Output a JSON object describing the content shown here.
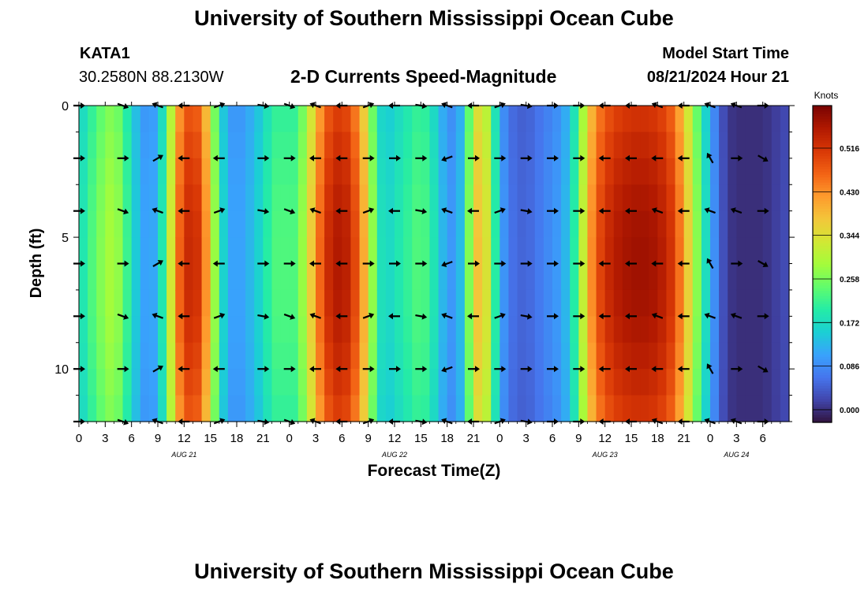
{
  "header": {
    "title": "University of Southern Mississippi Ocean Cube",
    "station": "KATA1",
    "coords": "30.2580N  88.2130W",
    "subtitle": "2-D Currents Speed-Magnitude",
    "model_label": "Model Start Time",
    "model_time": "08/21/2024 Hour 21"
  },
  "footer": {
    "title": "University of Southern Mississippi Ocean Cube"
  },
  "colors": {
    "ramp": [
      "#30123b",
      "#4145ab",
      "#4675ed",
      "#39a2fc",
      "#1bcfd4",
      "#24eca6",
      "#61fc6c",
      "#a4fc3b",
      "#d1e834",
      "#f3c63a",
      "#fe9b2d",
      "#f36315",
      "#d93806",
      "#b11901",
      "#7a0402"
    ]
  },
  "chart_data": {
    "type": "heatmap",
    "title": "2-D Currents Speed-Magnitude",
    "xlabel": "Forecast Time(Z)",
    "ylabel": "Depth (ft)",
    "x_range_hours": [
      0,
      81
    ],
    "x_tick_step_hours": 3,
    "x_tick_labels": [
      "0",
      "3",
      "6",
      "9",
      "12",
      "15",
      "18",
      "21",
      "0",
      "3",
      "6",
      "9",
      "12",
      "15",
      "18",
      "21",
      "0",
      "3",
      "6",
      "9",
      "12",
      "15",
      "18",
      "21",
      "0",
      "3",
      "6"
    ],
    "date_labels": [
      {
        "hour": 12,
        "label": "AUG 21"
      },
      {
        "hour": 36,
        "label": "AUG 22"
      },
      {
        "hour": 60,
        "label": "AUG 23"
      },
      {
        "hour": 75,
        "label": "AUG 24"
      }
    ],
    "y_range_ft": [
      0,
      12
    ],
    "y_ticks": [
      0,
      5,
      10
    ],
    "colorbar": {
      "label": "Knots",
      "ticks": [
        0.0,
        0.086,
        0.172,
        0.258,
        0.344,
        0.43,
        0.516
      ],
      "tick_labels": [
        "0.000",
        "0.086",
        "0.172",
        "0.258",
        "0.344",
        "0.430",
        "0.516"
      ],
      "range": [
        -0.025,
        0.6
      ]
    },
    "speed_profile_knots": [
      [
        0,
        0.17
      ],
      [
        1,
        0.21
      ],
      [
        2,
        0.25
      ],
      [
        3,
        0.28
      ],
      [
        4,
        0.3
      ],
      [
        5,
        0.25
      ],
      [
        6,
        0.18
      ],
      [
        7,
        0.12
      ],
      [
        8,
        0.1
      ],
      [
        9,
        0.13
      ],
      [
        10,
        0.25
      ],
      [
        11,
        0.42
      ],
      [
        12,
        0.52
      ],
      [
        13,
        0.54
      ],
      [
        14,
        0.5
      ],
      [
        15,
        0.36
      ],
      [
        16,
        0.2
      ],
      [
        17,
        0.12
      ],
      [
        18,
        0.1
      ],
      [
        19,
        0.12
      ],
      [
        20,
        0.14
      ],
      [
        21,
        0.18
      ],
      [
        22,
        0.22
      ],
      [
        23,
        0.24
      ],
      [
        24,
        0.22
      ],
      [
        25,
        0.24
      ],
      [
        26,
        0.32
      ],
      [
        27,
        0.42
      ],
      [
        28,
        0.51
      ],
      [
        29,
        0.55
      ],
      [
        30,
        0.56
      ],
      [
        31,
        0.53
      ],
      [
        32,
        0.46
      ],
      [
        33,
        0.35
      ],
      [
        34,
        0.2
      ],
      [
        35,
        0.16
      ],
      [
        36,
        0.18
      ],
      [
        37,
        0.2
      ],
      [
        38,
        0.22
      ],
      [
        39,
        0.24
      ],
      [
        40,
        0.21
      ],
      [
        41,
        0.16
      ],
      [
        42,
        0.1
      ],
      [
        43,
        0.1
      ],
      [
        44,
        0.17
      ],
      [
        45,
        0.36
      ],
      [
        46,
        0.4
      ],
      [
        47,
        0.28
      ],
      [
        48,
        0.12
      ],
      [
        49,
        0.07
      ],
      [
        50,
        0.05
      ],
      [
        51,
        0.05
      ],
      [
        52,
        0.06
      ],
      [
        53,
        0.08
      ],
      [
        54,
        0.09
      ],
      [
        55,
        0.11
      ],
      [
        56,
        0.15
      ],
      [
        57,
        0.25
      ],
      [
        58,
        0.39
      ],
      [
        59,
        0.48
      ],
      [
        60,
        0.52
      ],
      [
        61,
        0.55
      ],
      [
        62,
        0.56
      ],
      [
        63,
        0.57
      ],
      [
        64,
        0.57
      ],
      [
        65,
        0.57
      ],
      [
        66,
        0.56
      ],
      [
        67,
        0.54
      ],
      [
        68,
        0.5
      ],
      [
        69,
        0.41
      ],
      [
        70,
        0.32
      ],
      [
        71,
        0.22
      ],
      [
        72,
        0.13
      ],
      [
        73,
        0.05
      ],
      [
        74,
        0.01
      ],
      [
        75,
        0.0
      ],
      [
        76,
        0.0
      ],
      [
        77,
        0.0
      ],
      [
        78,
        0.0
      ],
      [
        79,
        0.01
      ],
      [
        80,
        0.02
      ],
      [
        81,
        0.03
      ]
    ],
    "vector_rows_ft": [
      0,
      2,
      4,
      6,
      8,
      10,
      12
    ],
    "vector_cols_hours": [
      0,
      5,
      9,
      12,
      16,
      21,
      24,
      27,
      30,
      33,
      36,
      39,
      42,
      45,
      48,
      51,
      54,
      57,
      60,
      63,
      66,
      69,
      72,
      75,
      78
    ],
    "vector_direction_pattern_deg": [
      [
        0,
        20,
        200,
        180,
        340,
        10,
        20,
        200,
        180,
        340,
        180,
        10,
        200,
        180,
        340,
        10,
        0,
        0,
        180,
        180,
        200,
        180,
        200,
        200,
        0
      ],
      [
        0,
        0,
        330,
        180,
        180,
        0,
        0,
        180,
        180,
        0,
        0,
        0,
        160,
        0,
        0,
        0,
        0,
        0,
        180,
        180,
        180,
        180,
        240,
        0,
        30
      ]
    ]
  }
}
